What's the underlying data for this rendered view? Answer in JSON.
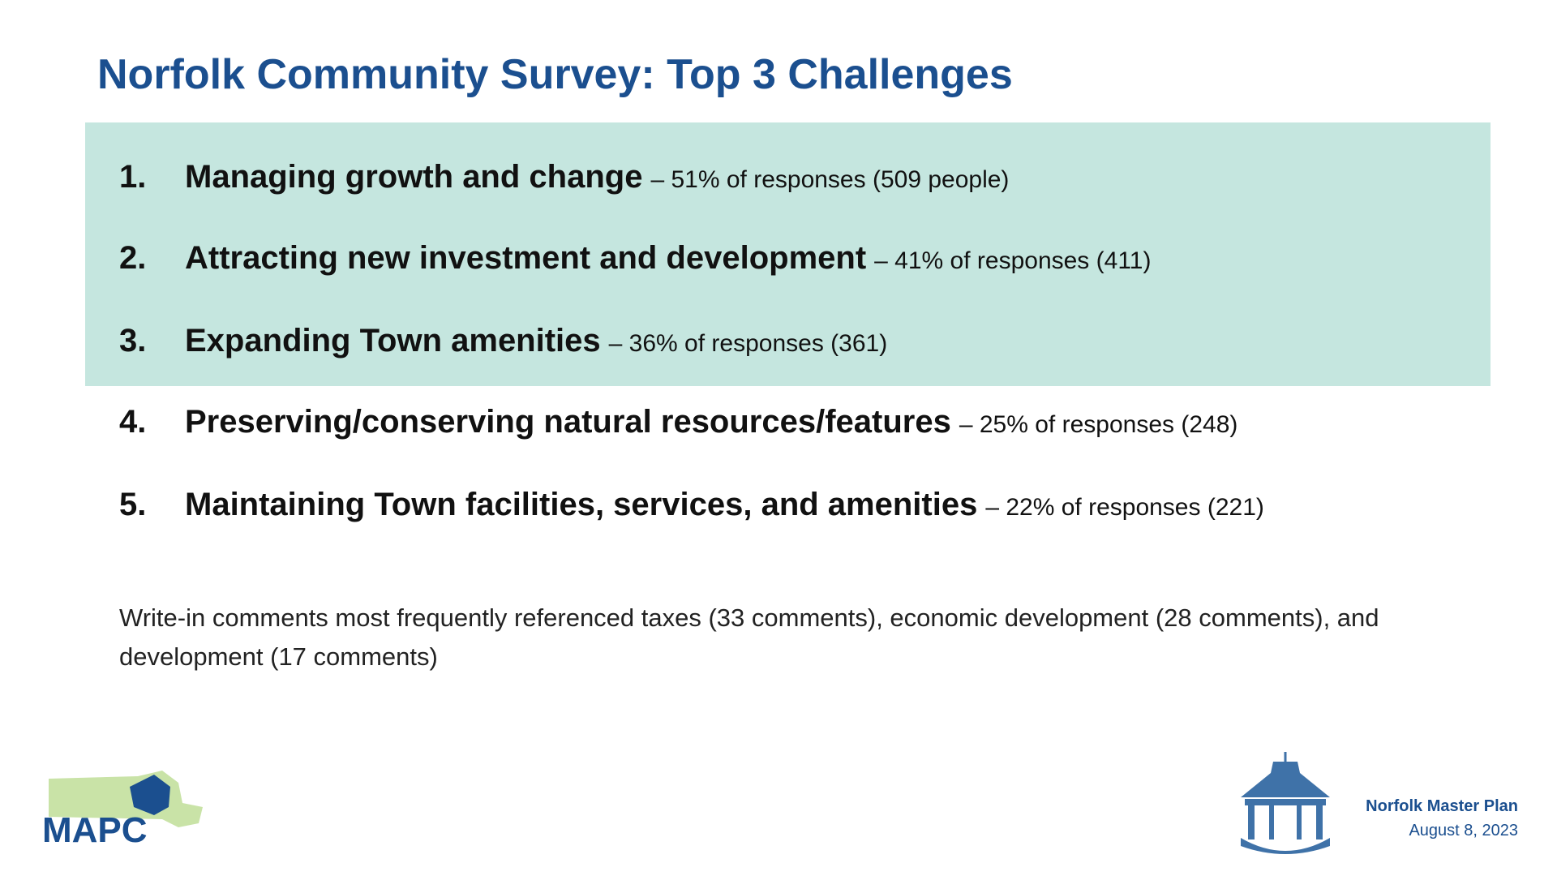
{
  "header": {
    "title": "Norfolk Community Survey: Top 3 Challenges"
  },
  "items": [
    {
      "number": "1.",
      "label": "Managing growth and change",
      "detail": "– 51% of responses (509 people)"
    },
    {
      "number": "2.",
      "label": "Attracting new investment and development",
      "detail": "– 41% of responses (411)"
    },
    {
      "number": "3.",
      "label": "Expanding Town amenities",
      "detail": "– 36% of responses (361)"
    },
    {
      "number": "4.",
      "label": "Preserving/conserving natural resources/features",
      "detail": "– 25% of responses (248)"
    },
    {
      "number": "5.",
      "label": "Maintaining Town facilities, services, and amenities",
      "detail": "– 22% of responses (221)"
    }
  ],
  "note": "Write-in comments most frequently referenced taxes (33 comments), economic development (28 comments), and development (17 comments)",
  "footer": {
    "logo": "MAPC",
    "title": "Norfolk Master Plan",
    "date": "August 8, 2023"
  }
}
